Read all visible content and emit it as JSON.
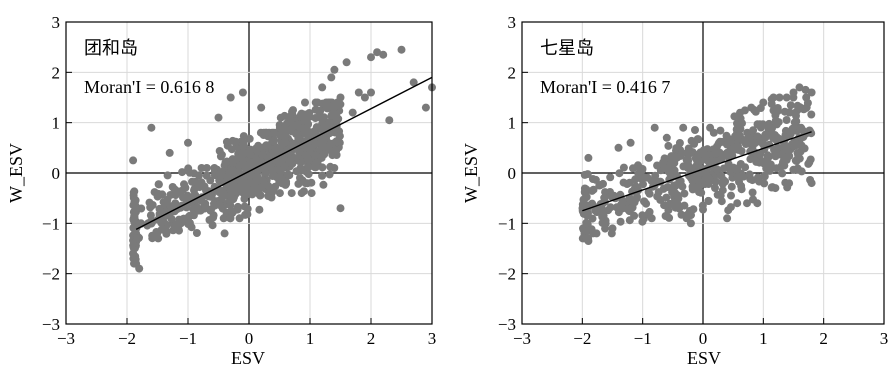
{
  "chart_data": [
    {
      "type": "scatter",
      "title": "",
      "annotations": [
        "团和岛",
        "Moran'I = 0.616 8"
      ],
      "xlabel": "ESV",
      "ylabel": "W_ESV",
      "xlim": [
        -3,
        3
      ],
      "ylim": [
        -3,
        3
      ],
      "xticks": [
        -3,
        -2,
        -1,
        0,
        1,
        2,
        3
      ],
      "yticks": [
        -3,
        -2,
        -1,
        0,
        1,
        2,
        3
      ],
      "xtick_labels": [
        "−3",
        "−2",
        "−1",
        "0",
        "1",
        "2",
        "3"
      ],
      "ytick_labels": [
        "−3",
        "−2",
        "−1",
        "0",
        "1",
        "2",
        "3"
      ],
      "grid": true,
      "point_color": "#7a7a7a",
      "fit_line": {
        "x": [
          -1.85,
          3.0
        ],
        "y": [
          -1.12,
          1.9
        ]
      },
      "points": {
        "density_bands": [
          {
            "x_range": [
              -1.9,
              -1.85
            ],
            "y_range": [
              -1.8,
              0.3
            ],
            "n": 60
          },
          {
            "x_range": [
              -1.85,
              -0.5
            ],
            "y_range": [
              -1.3,
              0.1
            ],
            "n": 150
          },
          {
            "x_range": [
              -0.5,
              0.5
            ],
            "y_range": [
              -0.9,
              0.8
            ],
            "n": 320
          },
          {
            "x_range": [
              0.5,
              1.5
            ],
            "y_range": [
              -0.4,
              1.4
            ],
            "n": 300
          }
        ],
        "outliers": [
          [
            2.5,
            2.45
          ],
          [
            2.1,
            2.4
          ],
          [
            2.2,
            2.35
          ],
          [
            2.0,
            2.3
          ],
          [
            2.7,
            1.8
          ],
          [
            3.0,
            1.7
          ],
          [
            2.9,
            1.3
          ],
          [
            2.3,
            1.05
          ],
          [
            2.0,
            1.6
          ],
          [
            1.9,
            1.5
          ],
          [
            1.6,
            2.2
          ],
          [
            1.4,
            2.05
          ],
          [
            1.2,
            1.7
          ],
          [
            1.35,
            1.9
          ],
          [
            1.8,
            1.6
          ],
          [
            1.5,
            1.5
          ],
          [
            1.7,
            1.2
          ],
          [
            -0.3,
            1.5
          ],
          [
            -0.1,
            1.6
          ],
          [
            -0.5,
            1.1
          ],
          [
            0.2,
            1.3
          ],
          [
            -1.6,
            0.9
          ],
          [
            -1.0,
            0.6
          ],
          [
            -1.3,
            0.4
          ],
          [
            -1.9,
            0.25
          ],
          [
            1.5,
            -0.7
          ],
          [
            0.7,
            -0.4
          ],
          [
            -0.4,
            -1.2
          ],
          [
            -1.8,
            -1.9
          ],
          [
            -1.9,
            -1.6
          ]
        ]
      }
    },
    {
      "type": "scatter",
      "title": "",
      "annotations": [
        "七星岛",
        "Moran'I = 0.416 7"
      ],
      "xlabel": "ESV",
      "ylabel": "W_ESV",
      "xlim": [
        -3,
        3
      ],
      "ylim": [
        -3,
        3
      ],
      "xticks": [
        -3,
        -2,
        -1,
        0,
        1,
        2,
        3
      ],
      "yticks": [
        -3,
        -2,
        -1,
        0,
        1,
        2,
        3
      ],
      "xtick_labels": [
        "−3",
        "−2",
        "−1",
        "0",
        "1",
        "2",
        "3"
      ],
      "ytick_labels": [
        "−3",
        "−2",
        "−1",
        "0",
        "1",
        "2",
        "3"
      ],
      "grid": true,
      "point_color": "#7a7a7a",
      "fit_line": {
        "x": [
          -2.0,
          1.8
        ],
        "y": [
          -0.75,
          0.82
        ]
      },
      "points": {
        "density_bands": [
          {
            "x_range": [
              -2.0,
              -1.9
            ],
            "y_range": [
              -1.3,
              0.3
            ],
            "n": 40
          },
          {
            "x_range": [
              -1.9,
              -0.9
            ],
            "y_range": [
              -1.2,
              0.2
            ],
            "n": 90
          },
          {
            "x_range": [
              -0.9,
              0.5
            ],
            "y_range": [
              -0.9,
              0.9
            ],
            "n": 220
          },
          {
            "x_range": [
              0.5,
              1.8
            ],
            "y_range": [
              -0.6,
              1.5
            ],
            "n": 220
          }
        ],
        "outliers": [
          [
            1.6,
            1.7
          ],
          [
            1.7,
            1.65
          ],
          [
            1.8,
            1.6
          ],
          [
            1.5,
            1.6
          ],
          [
            1.0,
            1.4
          ],
          [
            0.8,
            1.3
          ],
          [
            -0.8,
            0.9
          ],
          [
            -1.2,
            0.6
          ],
          [
            -1.4,
            0.5
          ],
          [
            -1.9,
            0.3
          ],
          [
            1.8,
            -0.2
          ],
          [
            1.2,
            -0.3
          ],
          [
            0.4,
            -0.9
          ],
          [
            -0.2,
            -1.0
          ],
          [
            -1.9,
            -1.35
          ],
          [
            -1.5,
            -1.1
          ],
          [
            0.9,
            -0.6
          ],
          [
            -0.6,
            0.7
          ]
        ]
      }
    }
  ]
}
